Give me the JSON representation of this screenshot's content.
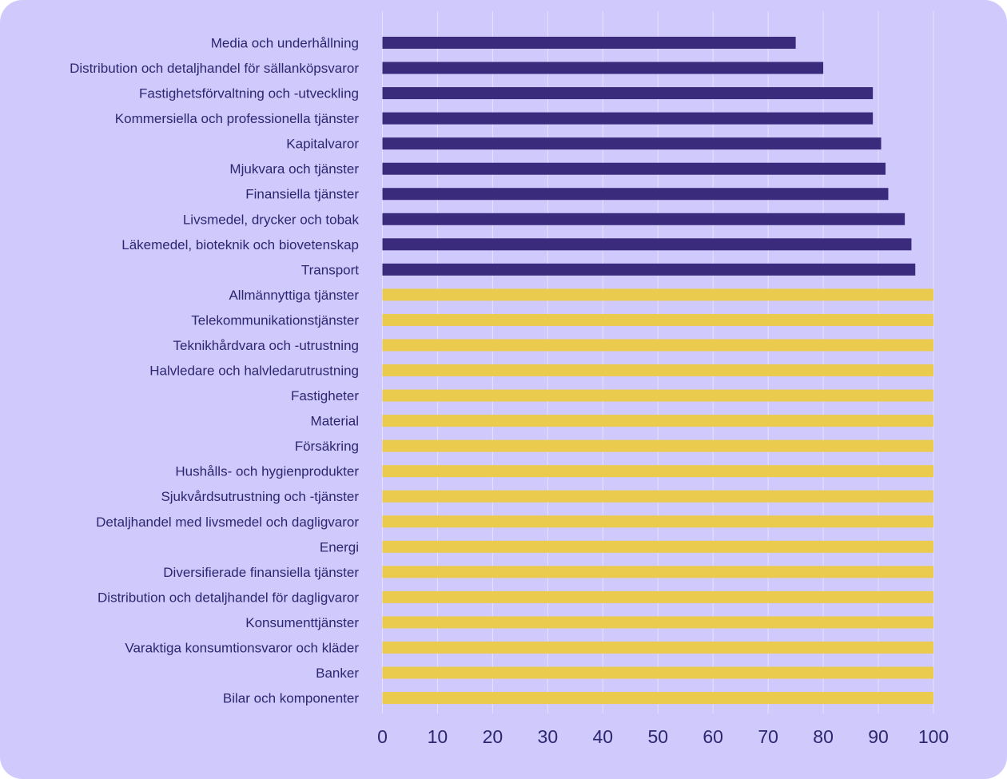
{
  "colors": {
    "background": "#d0c9fc",
    "gridline": "#e6e2fd",
    "text": "#2d2670",
    "below_100": "#3a2b7d",
    "at_100": "#ebcb4e"
  },
  "chart_data": {
    "type": "bar",
    "orientation": "horizontal",
    "title": "",
    "xlabel": "",
    "ylabel": "",
    "xlim": [
      0,
      100
    ],
    "xticks": [
      0,
      10,
      20,
      30,
      40,
      50,
      60,
      70,
      80,
      90,
      100
    ],
    "grid": "vertical",
    "legend": "none",
    "categories": [
      "Media och underhållning",
      "Distribution och detaljhandel för sällanköpsvaror",
      "Fastighetsförvaltning och -utveckling",
      "Kommersiella och professionella tjänster",
      "Kapitalvaror",
      "Mjukvara och tjänster",
      "Finansiella tjänster",
      "Livsmedel, drycker och tobak",
      "Läkemedel, bioteknik och biovetenskap",
      "Transport",
      "Allmännyttiga tjänster",
      "Telekommunikationstjänster",
      "Teknikhårdvara och -utrustning",
      "Halvledare och halvledarutrustning",
      "Fastigheter",
      "Material",
      "Försäkring",
      "Hushålls- och hygienprodukter",
      "Sjukvårdsutrustning och -tjänster",
      "Detaljhandel med livsmedel och dagligvaror",
      "Energi",
      "Diversifierade finansiella tjänster",
      "Distribution och detaljhandel för dagligvaror",
      "Konsumenttjänster",
      "Varaktiga konsumtionsvaror och kläder",
      "Banker",
      "Bilar och komponenter"
    ],
    "values": [
      75,
      80,
      89,
      89,
      90.5,
      91.3,
      91.8,
      94.8,
      96,
      96.7,
      100,
      100,
      100,
      100,
      100,
      100,
      100,
      100,
      100,
      100,
      100,
      100,
      100,
      100,
      100,
      100,
      100
    ]
  }
}
